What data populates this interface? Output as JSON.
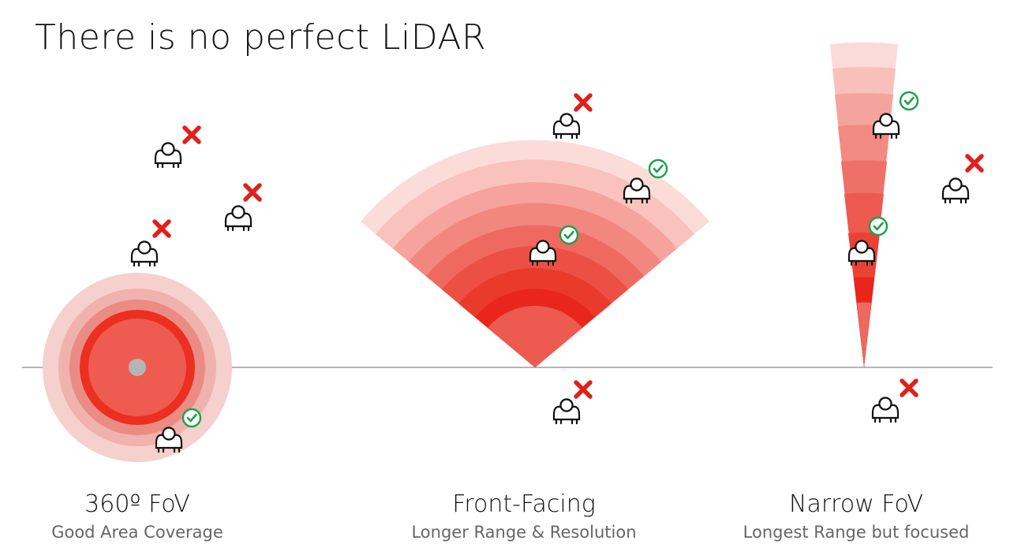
{
  "title": "There is no perfect LiDAR",
  "panels": [
    {
      "id": "fov360",
      "label": "360º FoV",
      "sublabel": "Good Area Coverage"
    },
    {
      "id": "front",
      "label": "Front-Facing",
      "sublabel": "Longer Range & Resolution"
    },
    {
      "id": "narrow",
      "label": "Narrow FoV",
      "sublabel": "Longest Range but focused"
    }
  ],
  "colors": {
    "ring_light": "#fbd2cf",
    "ring_dark": "#e8261c",
    "accent_red": "#e0201b",
    "check_green": "#1aa24a",
    "axis": "#888888"
  },
  "icons": {
    "person": "person-top-view-icon",
    "detected": "check-circle-icon",
    "missed": "red-x-icon"
  }
}
